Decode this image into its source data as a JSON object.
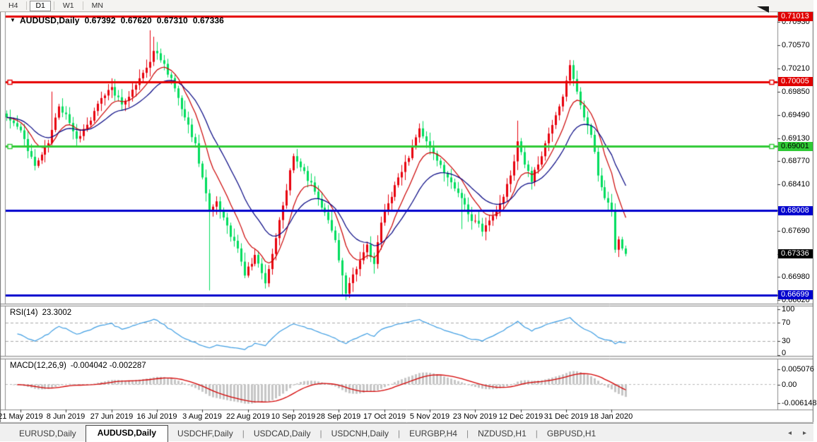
{
  "toolbar": {
    "buttons": [
      {
        "label": "H4",
        "active": false
      },
      {
        "label": "D1",
        "active": true
      },
      {
        "label": "W1",
        "active": false
      },
      {
        "label": "MN",
        "active": false
      }
    ]
  },
  "chart_header": {
    "symbol": "AUDUSD,Daily",
    "open": "0.67392",
    "high": "0.67620",
    "low": "0.67310",
    "close": "0.67336",
    "dropdown_icon": "▼"
  },
  "price_axis": {
    "ticks": [
      "0.70930",
      "0.70570",
      "0.70210",
      "0.69850",
      "0.69490",
      "0.69130",
      "0.68770",
      "0.68410",
      "0.67690",
      "0.66980",
      "0.66620"
    ],
    "tick_values": [
      0.7093,
      0.7057,
      0.7021,
      0.6985,
      0.6949,
      0.6913,
      0.6877,
      0.6841,
      0.6769,
      0.6698,
      0.6662
    ],
    "badges": [
      {
        "value": "0.71013",
        "price": 0.71013,
        "bg": "#e00000",
        "fg": "#ffffff"
      },
      {
        "value": "0.70005",
        "price": 0.70005,
        "bg": "#e00000",
        "fg": "#ffffff"
      },
      {
        "value": "0.69001",
        "price": 0.69001,
        "bg": "#2fca35",
        "fg": "#000000"
      },
      {
        "value": "0.68008",
        "price": 0.68008,
        "bg": "#0000cd",
        "fg": "#ffffff"
      },
      {
        "value": "0.67336",
        "price": 0.67336,
        "bg": "#000000",
        "fg": "#ffffff"
      },
      {
        "value": "0.66699",
        "price": 0.66699,
        "bg": "#0000cd",
        "fg": "#ffffff"
      }
    ]
  },
  "hlines": [
    {
      "price": 0.71013,
      "color": "#e60000",
      "width": 3,
      "handles": false
    },
    {
      "price": 0.70005,
      "color": "#e60000",
      "width": 3,
      "handles": true
    },
    {
      "price": 0.69001,
      "color": "#2fca35",
      "width": 3,
      "handles": true
    },
    {
      "price": 0.68008,
      "color": "#0000cd",
      "width": 3,
      "handles": false
    },
    {
      "price": 0.66699,
      "color": "#0000cd",
      "width": 3,
      "handles": false
    }
  ],
  "date_axis": {
    "labels": [
      "21 May 2019",
      "8 Jun 2019",
      "27 Jun 2019",
      "16 Jul 2019",
      "3 Aug 2019",
      "22 Aug 2019",
      "10 Sep 2019",
      "28 Sep 2019",
      "17 Oct 2019",
      "5 Nov 2019",
      "23 Nov 2019",
      "12 Dec 2019",
      "31 Dec 2019",
      "18 Jan 2020"
    ]
  },
  "rsi_panel": {
    "name": "RSI(14)",
    "value": "23.3002",
    "axis": [
      {
        "label": "100",
        "v": 100
      },
      {
        "label": "70",
        "v": 70
      },
      {
        "label": "30",
        "v": 30
      },
      {
        "label": "0",
        "v": 0
      }
    ],
    "dashed_levels": [
      70,
      30
    ],
    "line_color": "#3d9de3"
  },
  "macd_panel": {
    "name": "MACD(12,26,9)",
    "values": "-0.004042 -0.002287",
    "axis": [
      {
        "label": "0.005076",
        "v": 0.005076
      },
      {
        "label": "0.00",
        "v": 0.0
      },
      {
        "label": "-0.006148",
        "v": -0.006148
      }
    ],
    "hist_color": "#c6c6c6",
    "signal_color": "#d40000"
  },
  "tabs": {
    "items": [
      {
        "label": "EURUSD,Daily",
        "active": false
      },
      {
        "label": "AUDUSD,Daily",
        "active": true
      },
      {
        "label": "USDCHF,Daily",
        "active": false
      },
      {
        "label": "USDCAD,Daily",
        "active": false
      },
      {
        "label": "USDCNH,Daily",
        "active": false
      },
      {
        "label": "EURGBP,H4",
        "active": false
      },
      {
        "label": "NZDUSD,H1",
        "active": false
      },
      {
        "label": "GBPUSD,H1",
        "active": false
      }
    ],
    "left_arrow": "◂",
    "right_arrow": "▸"
  },
  "chart_data": {
    "type": "candlestick",
    "symbol": "AUDUSD",
    "timeframe": "Daily",
    "current_ohlc": {
      "open": 0.67392,
      "high": 0.6762,
      "low": 0.6731,
      "close": 0.67336
    },
    "price_axis_range": {
      "top": 0.71013,
      "bottom": 0.6662
    },
    "up_color": "#e8000d",
    "down_color": "#00dd5e",
    "candle_count": 178,
    "noise_seed": 11,
    "noise_amp": 0.0011,
    "close_anchors": [
      [
        0,
        0.6945
      ],
      [
        4,
        0.6925
      ],
      [
        8,
        0.687
      ],
      [
        12,
        0.6905
      ],
      [
        15,
        0.6962
      ],
      [
        17,
        0.695
      ],
      [
        20,
        0.6912
      ],
      [
        24,
        0.694
      ],
      [
        27,
        0.6975
      ],
      [
        30,
        0.6992
      ],
      [
        33,
        0.6965
      ],
      [
        36,
        0.6988
      ],
      [
        40,
        0.7022
      ],
      [
        42,
        0.7048
      ],
      [
        45,
        0.7028
      ],
      [
        48,
        0.699
      ],
      [
        51,
        0.6945
      ],
      [
        54,
        0.6905
      ],
      [
        56,
        0.6852
      ],
      [
        58,
        0.68
      ],
      [
        60,
        0.6815
      ],
      [
        62,
        0.679
      ],
      [
        64,
        0.676
      ],
      [
        66,
        0.6742
      ],
      [
        68,
        0.67
      ],
      [
        71,
        0.6732
      ],
      [
        74,
        0.6688
      ],
      [
        77,
        0.6758
      ],
      [
        80,
        0.6832
      ],
      [
        82,
        0.6885
      ],
      [
        85,
        0.6862
      ],
      [
        88,
        0.683
      ],
      [
        91,
        0.6798
      ],
      [
        94,
        0.6755
      ],
      [
        97,
        0.6672
      ],
      [
        100,
        0.671
      ],
      [
        103,
        0.6748
      ],
      [
        105,
        0.6718
      ],
      [
        107,
        0.6782
      ],
      [
        109,
        0.6812
      ],
      [
        112,
        0.6852
      ],
      [
        115,
        0.6882
      ],
      [
        118,
        0.6928
      ],
      [
        120,
        0.6908
      ],
      [
        123,
        0.6878
      ],
      [
        126,
        0.6852
      ],
      [
        129,
        0.6828
      ],
      [
        132,
        0.6795
      ],
      [
        134,
        0.6785
      ],
      [
        136,
        0.6768
      ],
      [
        139,
        0.6792
      ],
      [
        142,
        0.6822
      ],
      [
        144,
        0.6855
      ],
      [
        146,
        0.6908
      ],
      [
        148,
        0.6872
      ],
      [
        150,
        0.6845
      ],
      [
        152,
        0.6872
      ],
      [
        155,
        0.692
      ],
      [
        158,
        0.6962
      ],
      [
        160,
        0.7002
      ],
      [
        161,
        0.7026
      ],
      [
        163,
        0.6985
      ],
      [
        165,
        0.6945
      ],
      [
        167,
        0.6918
      ],
      [
        169,
        0.6855
      ],
      [
        171,
        0.682
      ],
      [
        173,
        0.6802
      ],
      [
        174,
        0.674
      ],
      [
        175,
        0.6756
      ],
      [
        176,
        0.6742
      ],
      [
        177,
        0.67336
      ]
    ],
    "wick_overrides": {
      "13": {
        "high": 0.6985
      },
      "41": {
        "high": 0.708
      },
      "42": {
        "high": 0.707
      },
      "58": {
        "low": 0.6677
      },
      "96": {
        "low": 0.667
      },
      "97": {
        "low": 0.6662
      },
      "105": {
        "low": 0.6703
      },
      "130": {
        "low": 0.6772
      },
      "146": {
        "high": 0.694
      },
      "161": {
        "high": 0.7034
      }
    },
    "moving_averages": [
      {
        "type": "ema",
        "period": 9,
        "color": "#cc0000"
      },
      {
        "type": "ema",
        "period": 20,
        "color": "#000080"
      }
    ],
    "indicators": {
      "rsi": {
        "period": 14,
        "current": 23.3002,
        "levels": [
          70,
          30
        ],
        "range": [
          0,
          100
        ]
      },
      "macd": {
        "fast": 12,
        "slow": 26,
        "signal": 9,
        "current_main": -0.004042,
        "current_signal": -0.002287,
        "axis_max": 0.005076,
        "axis_min": -0.006148
      }
    },
    "date_tick_indices": [
      4,
      17,
      30,
      43,
      56,
      69,
      82,
      95,
      108,
      121,
      134,
      147,
      160,
      173
    ]
  }
}
